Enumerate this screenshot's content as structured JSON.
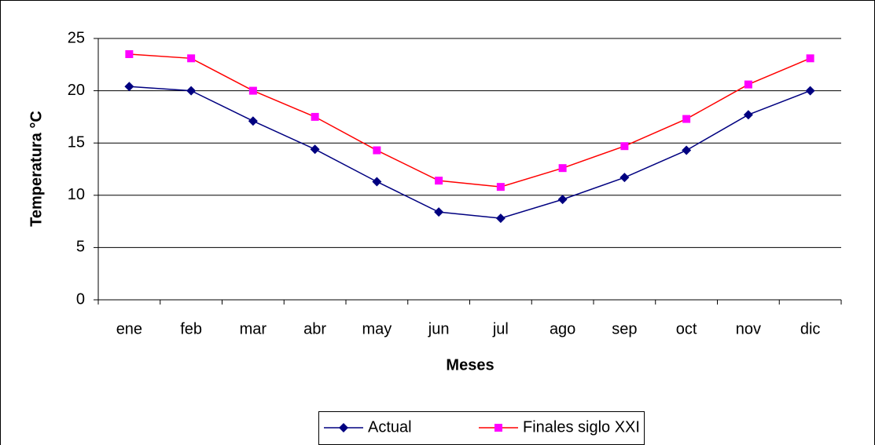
{
  "chart_data": {
    "type": "line",
    "y_label": "Temperatura °C",
    "x_label": "Meses",
    "categories": [
      "ene",
      "feb",
      "mar",
      "abr",
      "may",
      "jun",
      "jul",
      "ago",
      "sep",
      "oct",
      "nov",
      "dic"
    ],
    "series": [
      {
        "name": "Actual",
        "color": "#000080",
        "marker": "diamond",
        "values": [
          20.4,
          20.0,
          17.1,
          14.4,
          11.3,
          8.4,
          7.8,
          9.6,
          11.7,
          14.3,
          17.7,
          20.0
        ]
      },
      {
        "name": "Finales siglo XXI",
        "color": "#ff0000",
        "marker_color": "#ff00ff",
        "marker": "square",
        "values": [
          23.5,
          23.1,
          20.0,
          17.5,
          14.3,
          11.4,
          10.8,
          12.6,
          14.7,
          17.3,
          20.6,
          23.1
        ]
      }
    ],
    "ylim": [
      0,
      25
    ],
    "yticks": [
      0,
      5,
      10,
      15,
      20,
      25
    ],
    "grid": true,
    "legend": "bottom"
  }
}
